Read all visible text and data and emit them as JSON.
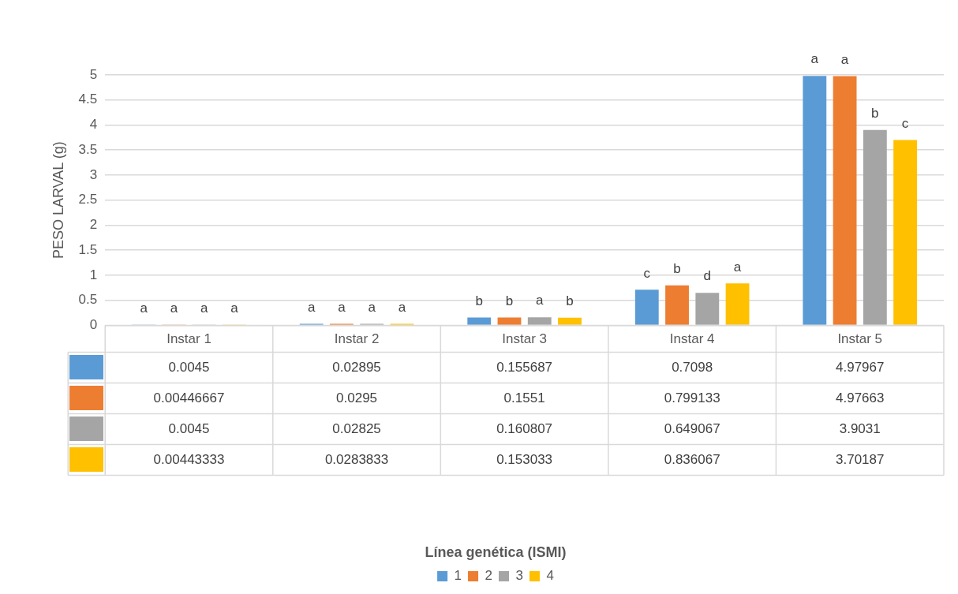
{
  "chart_data": {
    "type": "bar",
    "ylabel": "PESO LARVAL (g)",
    "legend_title": "Línea genética (ISMI)",
    "legend": "bottom",
    "grid": "y",
    "data_labels": true,
    "categories": [
      "Instar 1",
      "Instar 2",
      "Instar 3",
      "Instar 4",
      "Instar 5"
    ],
    "ylim": [
      0,
      5
    ],
    "yticks": [
      0,
      0.5,
      1,
      1.5,
      2,
      2.5,
      3,
      3.5,
      4,
      4.5,
      5
    ],
    "series": [
      {
        "name": "1",
        "color": "#5b9bd5",
        "values": [
          0.0045,
          0.02895,
          0.155687,
          0.7098,
          4.97967
        ]
      },
      {
        "name": "2",
        "color": "#ed7d31",
        "values": [
          0.00446667,
          0.0295,
          0.1551,
          0.799133,
          4.97663
        ]
      },
      {
        "name": "3",
        "color": "#a5a5a5",
        "values": [
          0.0045,
          0.02825,
          0.160807,
          0.649067,
          3.9031
        ]
      },
      {
        "name": "4",
        "color": "#ffc000",
        "values": [
          0.00443333,
          0.0283833,
          0.153033,
          0.836067,
          3.70187
        ]
      }
    ],
    "annotations": [
      "a",
      "a",
      "a",
      "a",
      "a",
      "a",
      "a",
      "a",
      "b",
      "b",
      "a",
      "b",
      "c",
      "b",
      "d",
      "a",
      "a",
      "a",
      "b",
      "c"
    ]
  }
}
